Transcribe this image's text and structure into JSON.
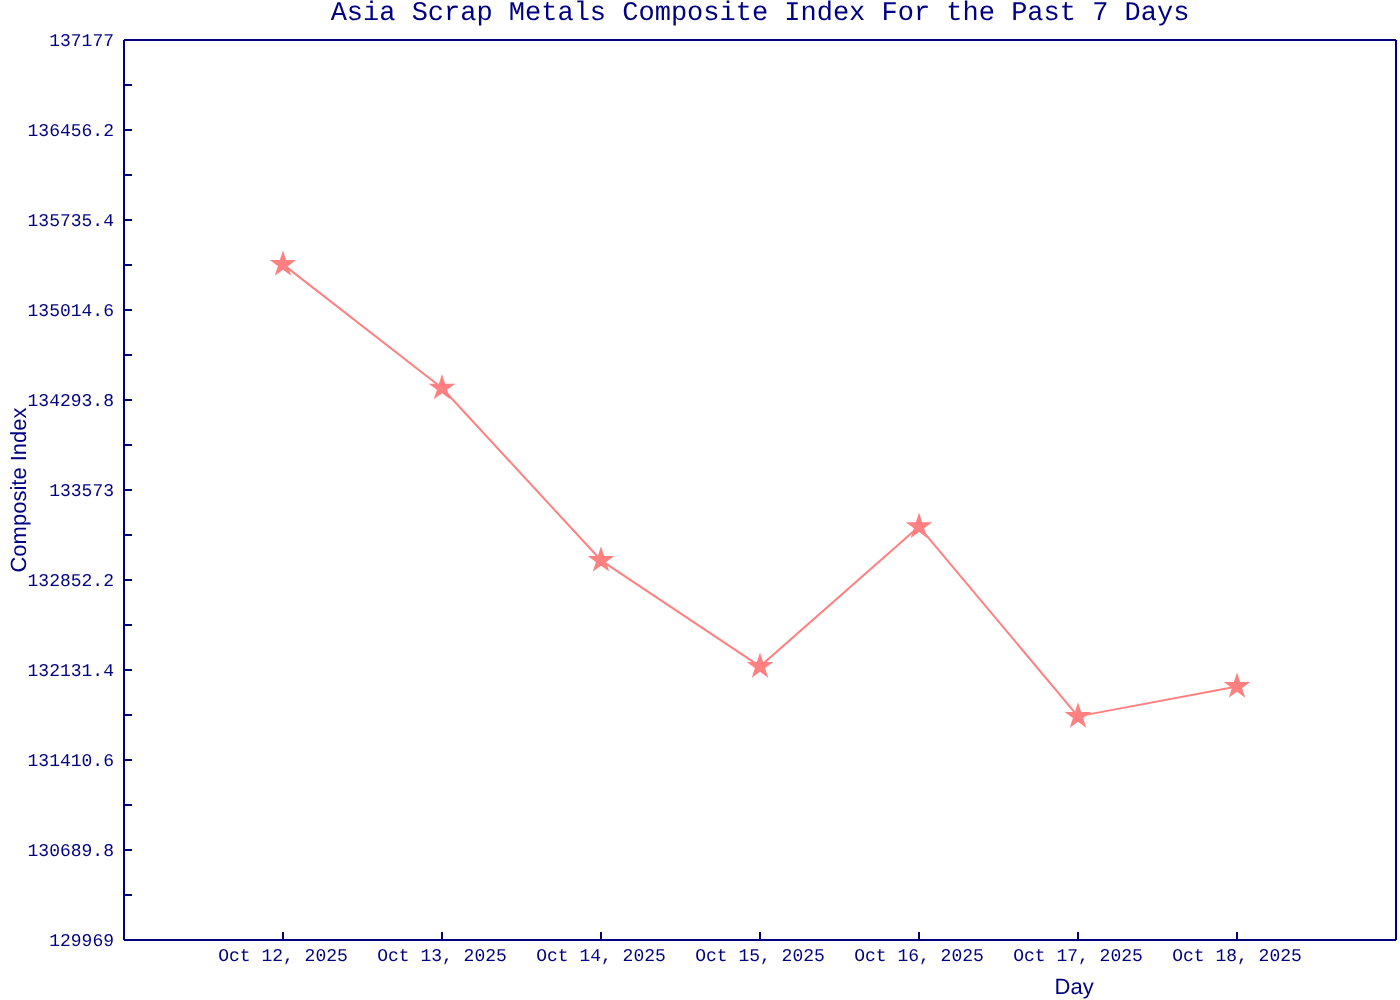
{
  "chart_data": {
    "type": "line",
    "title": "Asia Scrap Metals Composite Index For the Past 7 Days",
    "xlabel": "Day",
    "ylabel": "Composite Index",
    "x": [
      "2025-10-12",
      "2025-10-13",
      "2025-10-14",
      "2025-10-15",
      "2025-10-16",
      "2025-10-17",
      "2025-10-18"
    ],
    "values": [
      135380,
      134390,
      133010,
      132160,
      133280,
      131760,
      132000
    ],
    "color": "#ff8080",
    "marker": "star",
    "xlim": [
      "2025-10-11",
      "2025-10-19"
    ],
    "xticks": [
      {
        "value": "2025-10-12",
        "label": "Oct 12, 2025"
      },
      {
        "value": "2025-10-13",
        "label": "Oct 13, 2025"
      },
      {
        "value": "2025-10-14",
        "label": "Oct 14, 2025"
      },
      {
        "value": "2025-10-15",
        "label": "Oct 15, 2025"
      },
      {
        "value": "2025-10-16",
        "label": "Oct 16, 2025"
      },
      {
        "value": "2025-10-17",
        "label": "Oct 17, 2025"
      },
      {
        "value": "2025-10-18",
        "label": "Oct 18, 2025"
      }
    ],
    "ylim": [
      129969,
      137177
    ],
    "yticks": [
      129969,
      {
        "value": 130329.4,
        "label": null
      },
      130689.8,
      {
        "value": 131050.2,
        "label": null
      },
      131410.6,
      {
        "value": 131771,
        "label": null
      },
      132131.4,
      {
        "value": 132491.8,
        "label": null
      },
      132852.2,
      {
        "value": 133212.6,
        "label": null
      },
      133573,
      {
        "value": 133933.4,
        "label": null
      },
      134293.8,
      {
        "value": 134654.2,
        "label": null
      },
      135014.6,
      {
        "value": 135375,
        "label": null
      },
      135735.4,
      {
        "value": 136095.8,
        "label": null
      },
      136456.2,
      {
        "value": 136816.6,
        "label": null
      },
      137177
    ]
  }
}
